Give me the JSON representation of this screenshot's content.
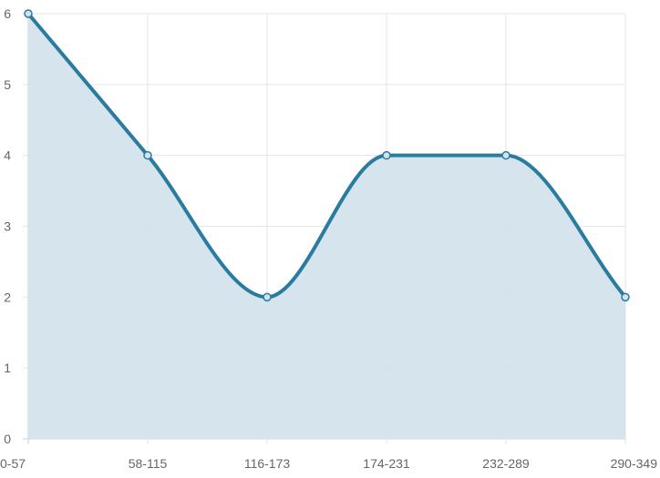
{
  "chart_data": {
    "type": "area",
    "title": "",
    "xlabel": "",
    "ylabel": "",
    "categories": [
      "0-57",
      "58-115",
      "116-173",
      "174-231",
      "232-289",
      "290-349"
    ],
    "series": [
      {
        "values": [
          6,
          4,
          2,
          4,
          4,
          2
        ]
      }
    ],
    "ylim": [
      0,
      6
    ],
    "yticks": [
      0,
      1,
      2,
      3,
      4,
      5,
      6
    ],
    "grid": true,
    "curve": "smooth",
    "colors": {
      "line": "#2a7ba0",
      "fill": "#d3e3ec",
      "grid": "#e6e6e6",
      "text": "#666666"
    }
  }
}
